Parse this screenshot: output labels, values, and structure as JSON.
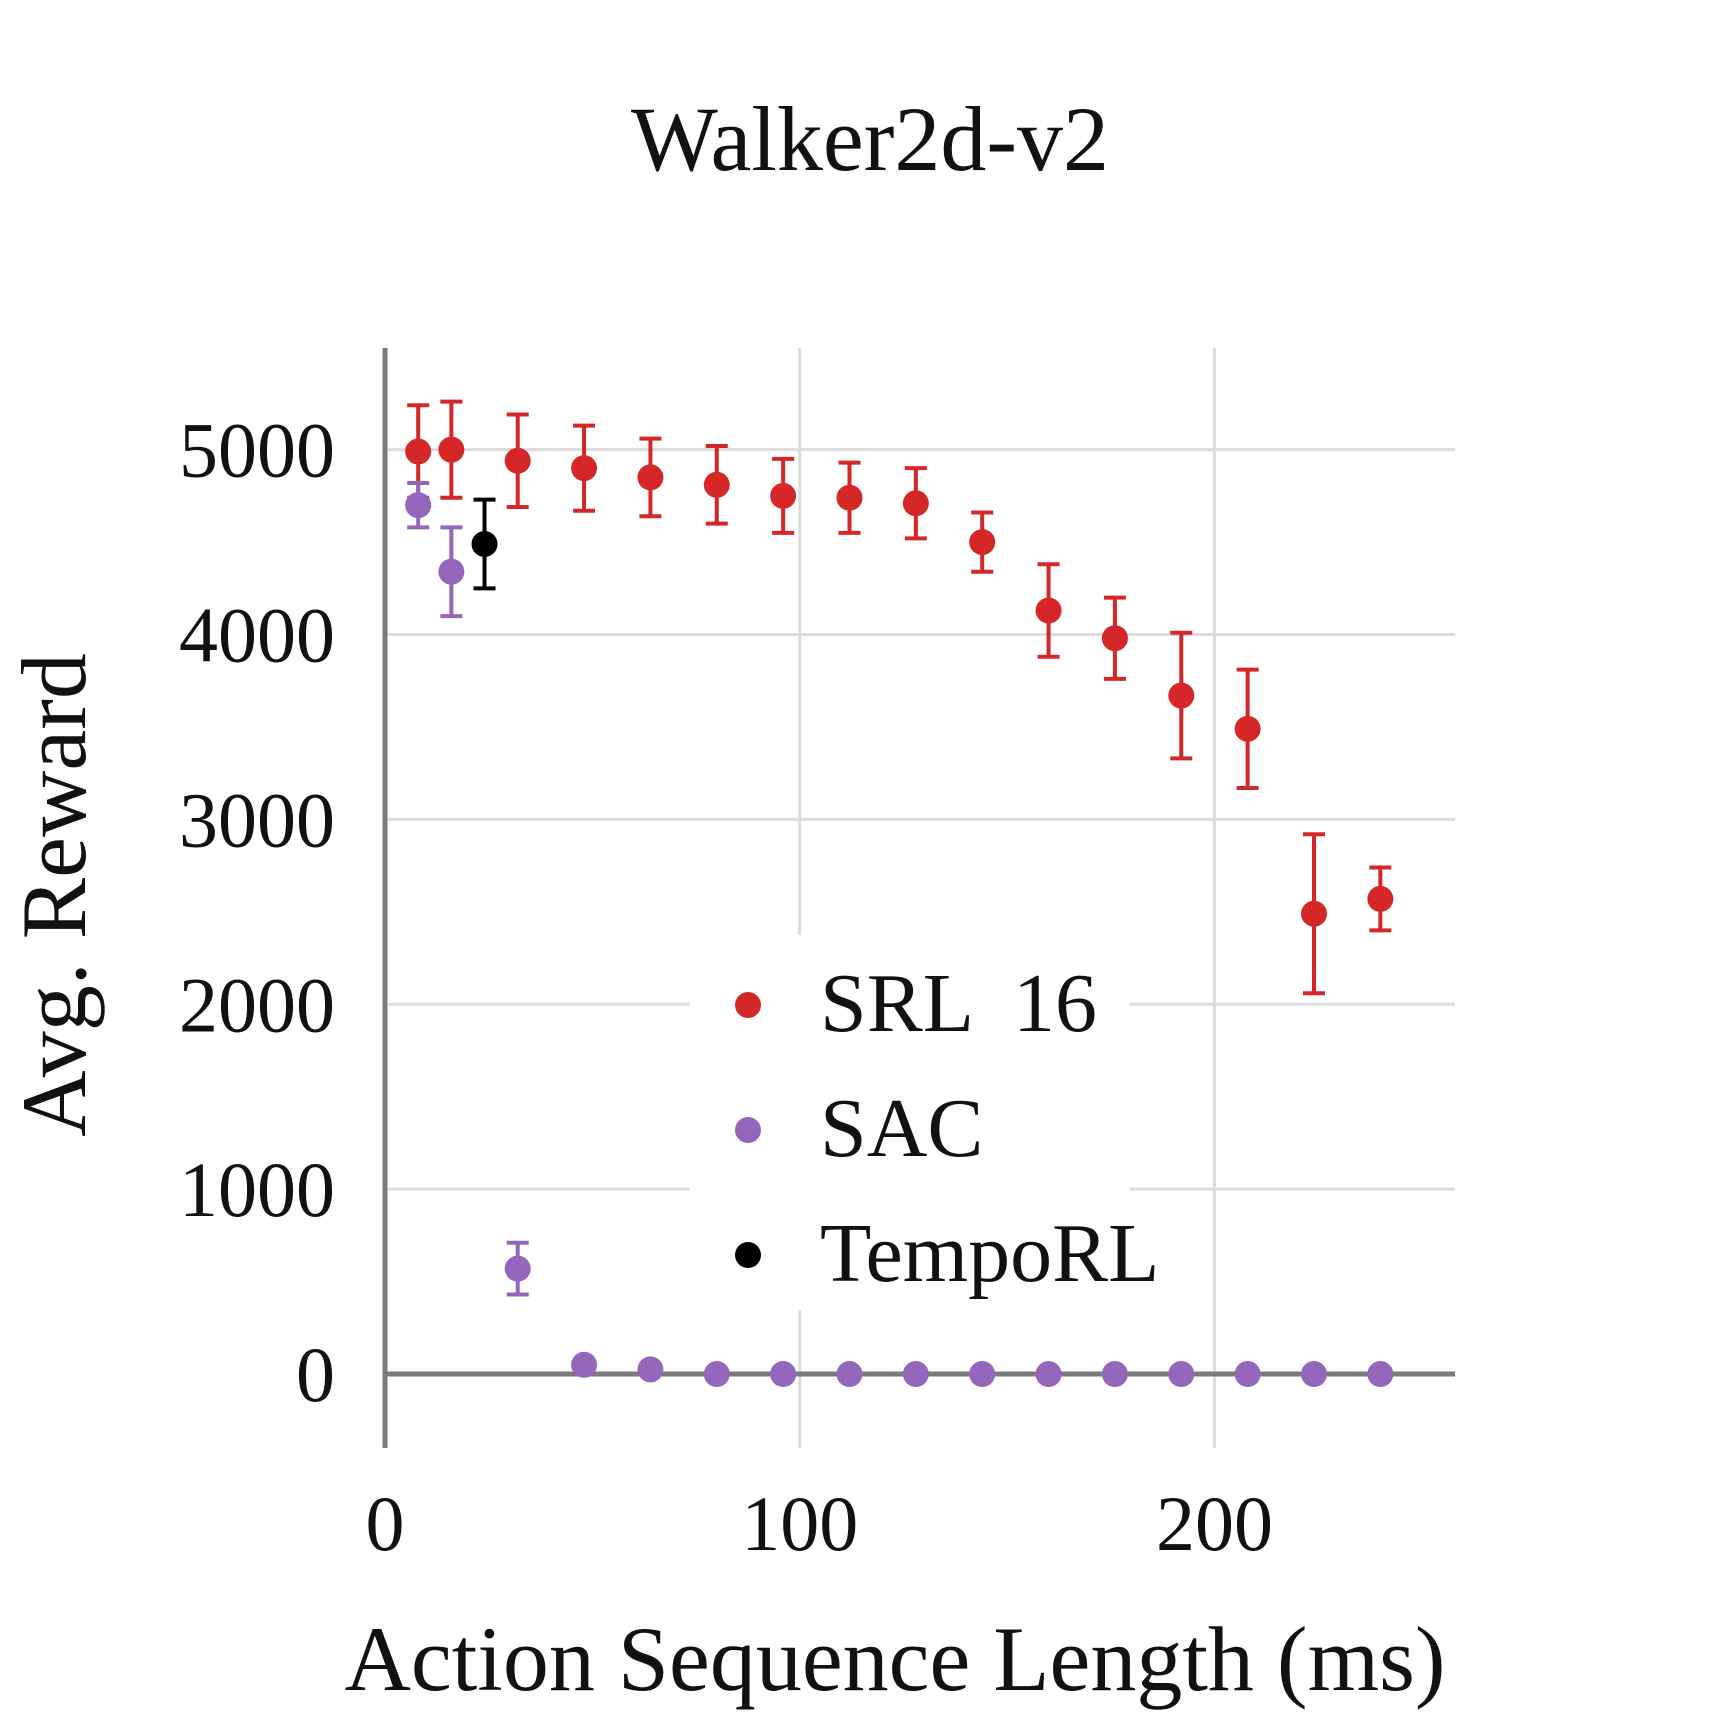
{
  "chart_data": {
    "type": "scatter",
    "title": "Walker2d-v2",
    "xlabel": "Action Sequence Length (ms)",
    "ylabel": "Avg. Reward",
    "xlim": [
      0,
      258
    ],
    "ylim": [
      -400,
      5550
    ],
    "x_ticks": [
      0,
      100,
      200
    ],
    "y_ticks": [
      0,
      1000,
      2000,
      3000,
      4000,
      5000
    ],
    "grid": true,
    "legend_position": "center",
    "series": [
      {
        "name": "SRL  16",
        "color": "#d62728",
        "points": [
          {
            "x": 8,
            "y": 4990,
            "err": 250
          },
          {
            "x": 16,
            "y": 5000,
            "err": 260
          },
          {
            "x": 32,
            "y": 4940,
            "err": 250
          },
          {
            "x": 48,
            "y": 4900,
            "err": 230
          },
          {
            "x": 64,
            "y": 4850,
            "err": 210
          },
          {
            "x": 80,
            "y": 4810,
            "err": 210
          },
          {
            "x": 96,
            "y": 4750,
            "err": 200
          },
          {
            "x": 112,
            "y": 4740,
            "err": 190
          },
          {
            "x": 128,
            "y": 4710,
            "err": 190
          },
          {
            "x": 144,
            "y": 4500,
            "err": 160
          },
          {
            "x": 160,
            "y": 4130,
            "err": 250
          },
          {
            "x": 176,
            "y": 3980,
            "err": 220
          },
          {
            "x": 192,
            "y": 3670,
            "err": 340
          },
          {
            "x": 208,
            "y": 3490,
            "err": 320
          },
          {
            "x": 224,
            "y": 2490,
            "err": 430
          },
          {
            "x": 240,
            "y": 2570,
            "err": 170
          }
        ]
      },
      {
        "name": "SAC",
        "color": "#9467bd",
        "points": [
          {
            "x": 8,
            "y": 4700,
            "err": 120
          },
          {
            "x": 16,
            "y": 4340,
            "err": 240
          },
          {
            "x": 32,
            "y": 570,
            "err": 140
          },
          {
            "x": 48,
            "y": 50,
            "err": 20
          },
          {
            "x": 64,
            "y": 25,
            "err": 10
          },
          {
            "x": 80,
            "y": 0,
            "err": 0
          },
          {
            "x": 96,
            "y": 0,
            "err": 0
          },
          {
            "x": 112,
            "y": 0,
            "err": 0
          },
          {
            "x": 128,
            "y": 0,
            "err": 0
          },
          {
            "x": 144,
            "y": 0,
            "err": 0
          },
          {
            "x": 160,
            "y": 0,
            "err": 0
          },
          {
            "x": 176,
            "y": 0,
            "err": 0
          },
          {
            "x": 192,
            "y": 0,
            "err": 0
          },
          {
            "x": 208,
            "y": 0,
            "err": 0
          },
          {
            "x": 224,
            "y": 0,
            "err": 0
          },
          {
            "x": 240,
            "y": 0,
            "err": 0
          }
        ]
      },
      {
        "name": "TempoRL",
        "color": "#000000",
        "points": [
          {
            "x": 24,
            "y": 4490,
            "err": 240
          }
        ]
      }
    ]
  }
}
